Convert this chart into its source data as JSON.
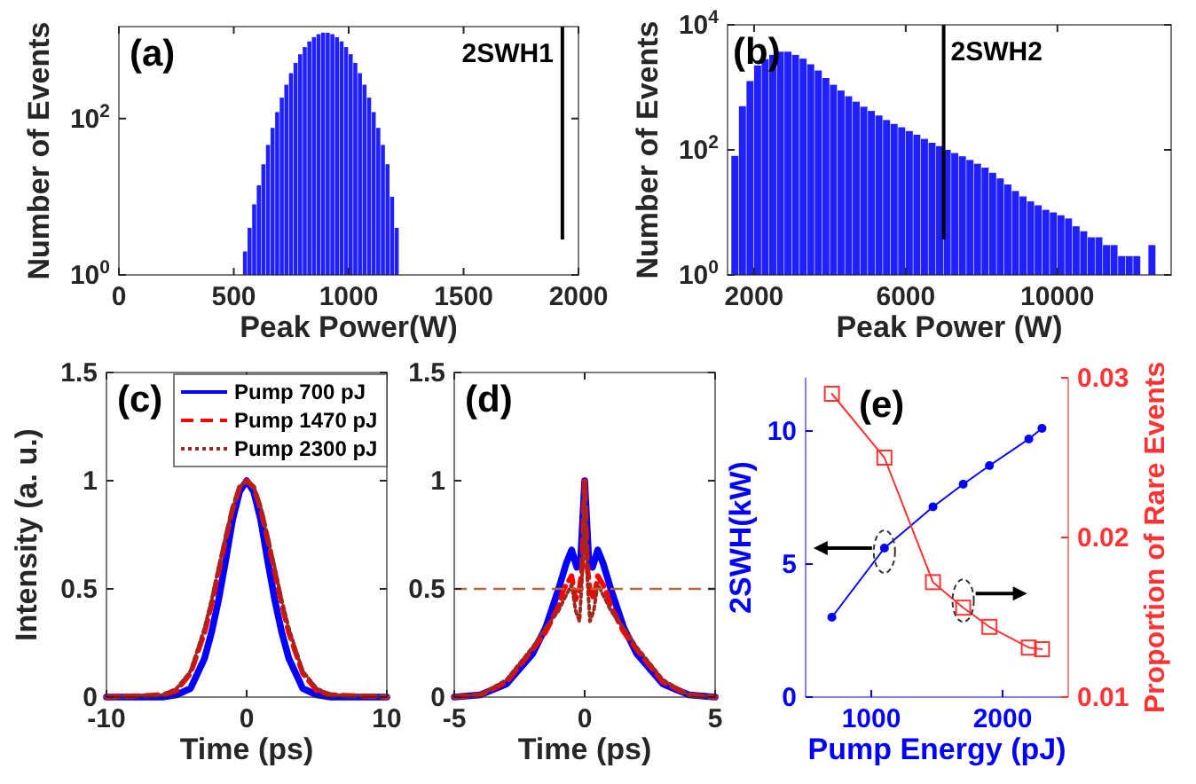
{
  "chart_data": [
    {
      "type": "histogram",
      "title": "(a)",
      "xlabel": "Peak Power(W)",
      "ylabel": "Number of Events",
      "color": "#2020ff",
      "log": "y",
      "bins": [
        540,
        560,
        580,
        600,
        620,
        640,
        660,
        680,
        700,
        720,
        740,
        760,
        780,
        800,
        820,
        840,
        860,
        880,
        900,
        920,
        940,
        960,
        980,
        1000,
        1020,
        1040,
        1060,
        1080,
        1100,
        1120,
        1140,
        1160,
        1180,
        1200,
        1220
      ],
      "values": [
        2,
        4,
        8,
        14,
        26,
        46,
        76,
        121,
        185,
        271,
        381,
        515,
        664,
        820,
        970,
        1100,
        1200,
        1255,
        1250,
        1200,
        1100,
        970,
        820,
        664,
        515,
        381,
        271,
        185,
        121,
        76,
        46,
        26,
        10,
        4
      ],
      "xlim": [
        0,
        2000
      ],
      "xticks": [
        0,
        500,
        1000,
        1500,
        2000
      ],
      "ylim": [
        1,
        1500
      ],
      "yticks": [
        {
          "value": 1,
          "label": "10$^{0}$"
        },
        {
          "value": 100,
          "label": "10$^{2}$"
        }
      ],
      "ref_lines": [
        {
          "axis": "x",
          "value": 1930,
          "label": "2SWH1",
          "color": "#000000"
        }
      ]
    },
    {
      "type": "histogram",
      "title": "(b)",
      "xlabel": "Peak Power (W)",
      "ylabel": "Number of Events",
      "color": "#2020ff",
      "log": "y",
      "bins": [
        1400,
        1600,
        1800,
        2000,
        2200,
        2400,
        2600,
        2800,
        3000,
        3200,
        3400,
        3600,
        3800,
        4000,
        4200,
        4400,
        4600,
        4800,
        5000,
        5200,
        5400,
        5600,
        5800,
        6000,
        6200,
        6400,
        6600,
        6800,
        7000,
        7200,
        7400,
        7600,
        7800,
        8000,
        8200,
        8400,
        8600,
        8800,
        9000,
        9200,
        9400,
        9600,
        9800,
        10000,
        10200,
        10400,
        10600,
        10800,
        11000,
        11200,
        11400,
        11600,
        11800,
        12000,
        12200,
        12400,
        12600
      ],
      "values": [
        80,
        500,
        1260,
        2240,
        2820,
        3310,
        3720,
        3720,
        3310,
        2880,
        2340,
        1860,
        1410,
        1100,
        890,
        720,
        590,
        490,
        420,
        355,
        300,
        260,
        230,
        200,
        175,
        150,
        130,
        115,
        100,
        89,
        79,
        69,
        60,
        52,
        43,
        35,
        28,
        22,
        18,
        15,
        13,
        11,
        10,
        9,
        8,
        6,
        5,
        4,
        4,
        3,
        3,
        2,
        2,
        2,
        1,
        3
      ],
      "xlim": [
        1300,
        13000
      ],
      "xticks": [
        2000,
        6000,
        10000
      ],
      "ylim": [
        1,
        10000
      ],
      "yticks": [
        {
          "value": 1,
          "label": "10$^{0}$"
        },
        {
          "value": 100,
          "label": "10$^{2}$"
        },
        {
          "value": 10000,
          "label": "10$^{4}$"
        }
      ],
      "ref_lines": [
        {
          "axis": "x",
          "value": 7000,
          "label": "2SWH2",
          "color": "#000000"
        }
      ]
    },
    {
      "type": "line",
      "title": "(c)",
      "xlabel": "Time (ps)",
      "ylabel": "Intensity (a. u.)",
      "legend": "top right",
      "x": [
        -10,
        -6,
        -5,
        -4,
        -3,
        -2.5,
        -2,
        -1.5,
        -1,
        -0.5,
        0,
        0.5,
        1,
        1.5,
        2,
        2.5,
        3,
        4,
        5,
        6,
        10
      ],
      "series": [
        {
          "name": "Pump 700 pJ",
          "color": "#0000ff",
          "line_style": "solid",
          "values": [
            0,
            0,
            0.01,
            0.04,
            0.18,
            0.3,
            0.45,
            0.63,
            0.82,
            0.95,
            1,
            0.95,
            0.82,
            0.63,
            0.45,
            0.3,
            0.18,
            0.04,
            0.01,
            0,
            0
          ]
        },
        {
          "name": "Pump 1470 pJ",
          "color": "#ff0000",
          "line_style": "dashed",
          "values": [
            0,
            0.01,
            0.03,
            0.11,
            0.3,
            0.43,
            0.58,
            0.73,
            0.87,
            0.97,
            1,
            0.97,
            0.87,
            0.73,
            0.58,
            0.43,
            0.3,
            0.11,
            0.03,
            0.01,
            0
          ]
        },
        {
          "name": "Pump 2300 pJ",
          "color": "#a0281e",
          "line_style": "dotted",
          "values": [
            0,
            0.01,
            0.04,
            0.12,
            0.32,
            0.45,
            0.6,
            0.74,
            0.88,
            0.97,
            1,
            0.97,
            0.88,
            0.74,
            0.6,
            0.45,
            0.32,
            0.12,
            0.04,
            0.01,
            0
          ]
        }
      ],
      "xlim": [
        -10,
        10
      ],
      "xticks": [
        -10,
        0,
        10
      ],
      "ylim": [
        0,
        1.5
      ],
      "yticks": [
        0,
        0.5,
        1,
        1.5
      ]
    },
    {
      "type": "line",
      "title": "(d)",
      "xlabel": "Time (ps)",
      "x": [
        -5,
        -4,
        -3,
        -2,
        -1.5,
        -1,
        -0.7,
        -0.5,
        -0.3,
        -0.15,
        0,
        0.15,
        0.3,
        0.5,
        0.7,
        1,
        1.5,
        2,
        3,
        4,
        5
      ],
      "series": [
        {
          "color": "#0000ff",
          "line_style": "solid",
          "values": [
            0,
            0.01,
            0.06,
            0.2,
            0.32,
            0.5,
            0.62,
            0.68,
            0.6,
            0.65,
            1,
            0.65,
            0.6,
            0.68,
            0.62,
            0.5,
            0.32,
            0.2,
            0.06,
            0.01,
            0
          ]
        },
        {
          "color": "#ff0000",
          "line_style": "dashed",
          "x": [
            -5,
            -4,
            -3,
            -2,
            -1.5,
            -1,
            -0.8,
            -0.5,
            -0.35,
            -0.2,
            -0.1,
            0,
            0.1,
            0.2,
            0.35,
            0.5,
            0.8,
            1,
            1.5,
            2,
            3,
            4,
            5
          ],
          "values": [
            0,
            0.01,
            0.07,
            0.22,
            0.3,
            0.42,
            0.5,
            0.56,
            0.45,
            0.5,
            0.6,
            1,
            0.6,
            0.5,
            0.45,
            0.56,
            0.5,
            0.42,
            0.3,
            0.22,
            0.07,
            0.01,
            0
          ]
        },
        {
          "color": "#a0281e",
          "line_style": "dotted",
          "x": [
            -5,
            -4,
            -3,
            -2,
            -1.5,
            -1,
            -0.8,
            -0.5,
            -0.35,
            -0.2,
            -0.1,
            0,
            0.1,
            0.2,
            0.35,
            0.5,
            0.8,
            1,
            1.5,
            2,
            3,
            4,
            5
          ],
          "values": [
            0,
            0.01,
            0.08,
            0.23,
            0.32,
            0.4,
            0.45,
            0.52,
            0.4,
            0.35,
            0.55,
            1,
            0.55,
            0.35,
            0.4,
            0.52,
            0.45,
            0.4,
            0.32,
            0.23,
            0.08,
            0.01,
            0
          ]
        }
      ],
      "xlim": [
        -5,
        5
      ],
      "xticks": [
        -5,
        0,
        5
      ],
      "ylim": [
        0,
        1.5
      ],
      "yticks": [
        0,
        0.5,
        1,
        1.5
      ],
      "ref_lines": [
        {
          "axis": "y",
          "value": 0.5,
          "color": "#b5653c",
          "line_style": "dashed"
        }
      ]
    },
    {
      "type": "line",
      "title": "(e)",
      "xlabel": "Pump Energy (pJ)",
      "ylabel": "2SWH(kW)",
      "y2label": "Proportion of Rare Events",
      "x": [
        700,
        1100,
        1470,
        1700,
        1900,
        2200,
        2300
      ],
      "series": [
        {
          "color": "#0000ff",
          "marker": "circle",
          "values": [
            3.0,
            5.6,
            7.15,
            8.0,
            8.7,
            9.7,
            10.1
          ]
        },
        {
          "color": "#ff3333",
          "marker": "square",
          "axis": "y2",
          "values": [
            0.029,
            0.025,
            0.0172,
            0.0156,
            0.0144,
            0.0131,
            0.013
          ]
        }
      ],
      "xlim": [
        500,
        2500
      ],
      "xticks": [
        1000,
        2000
      ],
      "ylim": [
        0,
        12
      ],
      "yticks": [
        0,
        5,
        10
      ],
      "y2lim": [
        0.01,
        0.03
      ],
      "y2ticks": [
        0.01,
        0.02,
        0.03
      ]
    }
  ]
}
